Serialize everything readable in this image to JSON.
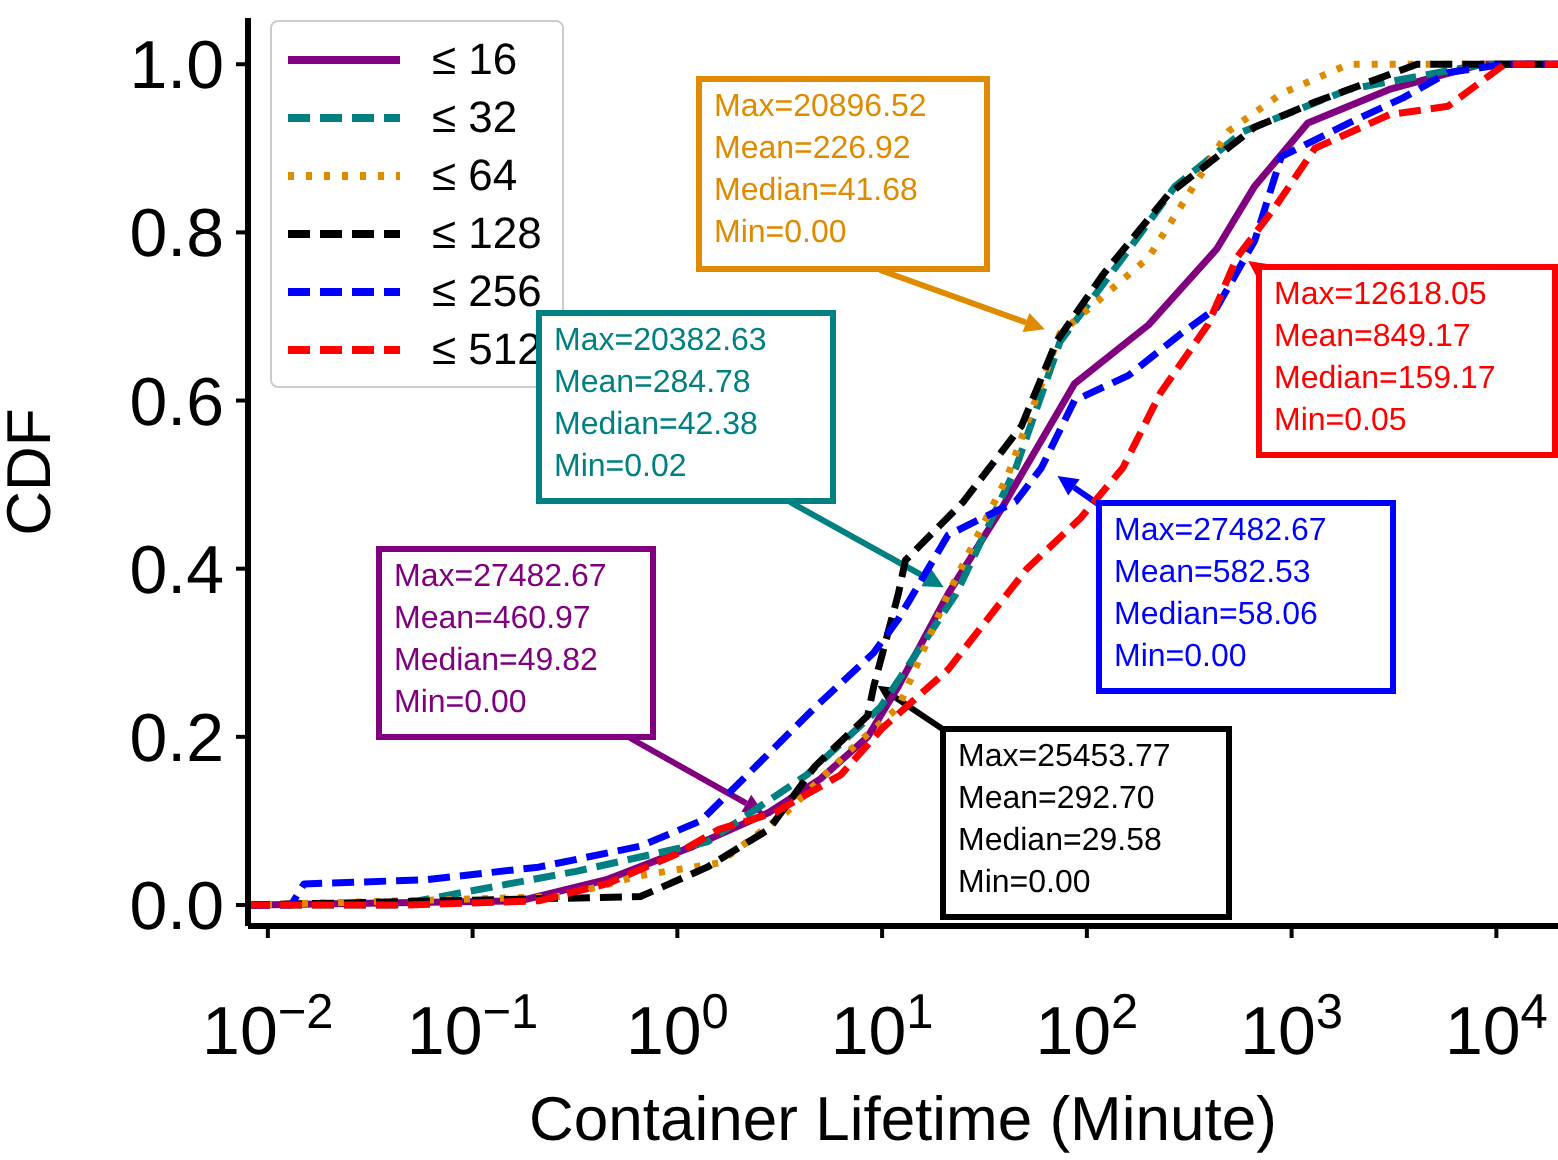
{
  "chart_data": {
    "type": "line",
    "xlabel": "Container Lifetime (Minute)",
    "ylabel": "CDF",
    "log": "x",
    "grid": false,
    "legend": "top left",
    "marker": "none",
    "xlim": [
      0.008,
      20000
    ],
    "xticks": [
      {
        "value": 0.01,
        "label": "10$^{−2}$"
      },
      {
        "value": 0.1,
        "label": "10$^{−1}$"
      },
      {
        "value": 1,
        "label": "10$^{0}$"
      },
      {
        "value": 10,
        "label": "10$^{1}$"
      },
      {
        "value": 100,
        "label": "10$^{2}$"
      },
      {
        "value": 1000,
        "label": "10$^{3}$"
      },
      {
        "value": 10000,
        "label": "10$^{4}$"
      }
    ],
    "ylim": [
      -0.025,
      1.055
    ],
    "yticks": [
      {
        "value": 0,
        "label": "0.0"
      },
      {
        "value": 0.2,
        "label": "0.2"
      },
      {
        "value": 0.4,
        "label": "0.4"
      },
      {
        "value": 0.6,
        "label": "0.6"
      },
      {
        "value": 0.8,
        "label": "0.8"
      },
      {
        "value": 1,
        "label": "1.0"
      }
    ],
    "series": [
      {
        "name": "≤ 16",
        "color": "#800080",
        "line_style": "solid",
        "x": [
          0.008,
          0.17,
          0.45,
          1.2,
          2.8,
          5,
          8.5,
          12,
          21,
          38,
          87,
          200,
          430,
          660,
          1200,
          3000,
          8500,
          20000
        ],
        "values": [
          0,
          0.005,
          0.03,
          0.07,
          0.11,
          0.15,
          0.2,
          0.26,
          0.37,
          0.47,
          0.62,
          0.69,
          0.78,
          0.855,
          0.93,
          0.97,
          1,
          1
        ]
      },
      {
        "name": "≤ 32",
        "color": "#008080",
        "line_style": "dashed",
        "x": [
          0.008,
          0.042,
          0.32,
          1.4,
          4.3,
          9.8,
          23,
          45,
          74,
          150,
          270,
          580,
          1900,
          8500,
          20000
        ],
        "values": [
          0,
          0,
          0.04,
          0.075,
          0.155,
          0.235,
          0.37,
          0.52,
          0.67,
          0.77,
          0.855,
          0.92,
          0.97,
          1,
          1
        ]
      },
      {
        "name": "≤ 64",
        "color": "#e08a00",
        "line_style": "dotted",
        "x": [
          0.008,
          0.27,
          0.66,
          1.6,
          3.4,
          7.4,
          12,
          21,
          41,
          74,
          200,
          490,
          890,
          1900,
          20000
        ],
        "values": [
          0,
          0.01,
          0.035,
          0.05,
          0.11,
          0.19,
          0.235,
          0.37,
          0.51,
          0.68,
          0.77,
          0.92,
          0.965,
          1,
          1
        ]
      },
      {
        "name": "≤ 128",
        "color": "#000000",
        "line_style": "dashed",
        "x": [
          0.008,
          0.66,
          1.4,
          2.8,
          4.7,
          8.5,
          9.1,
          12,
          13,
          25,
          48,
          71,
          120,
          250,
          660,
          1300,
          4100,
          20000
        ],
        "values": [
          0,
          0.01,
          0.045,
          0.09,
          0.165,
          0.225,
          0.26,
          0.37,
          0.41,
          0.48,
          0.57,
          0.67,
          0.75,
          0.845,
          0.925,
          0.955,
          1,
          1
        ]
      },
      {
        "name": "≤ 256",
        "color": "#0000ff",
        "line_style": "dashed",
        "x": [
          0.008,
          0.013,
          0.015,
          0.059,
          0.21,
          0.66,
          1.3,
          2.2,
          4.7,
          9.1,
          12,
          21,
          45,
          60,
          87,
          160,
          290,
          430,
          660,
          890,
          1900,
          3500,
          5800,
          11000,
          20000
        ],
        "values": [
          0,
          0,
          0.025,
          0.03,
          0.045,
          0.07,
          0.1,
          0.155,
          0.235,
          0.3,
          0.34,
          0.44,
          0.48,
          0.52,
          0.6,
          0.63,
          0.68,
          0.71,
          0.79,
          0.89,
          0.93,
          0.96,
          0.99,
          1,
          1
        ]
      },
      {
        "name": "≤ 512",
        "color": "#ff0000",
        "line_style": "dashed",
        "x": [
          0.008,
          0.048,
          0.21,
          0.45,
          0.98,
          1.6,
          3,
          6.3,
          10,
          21,
          51,
          93,
          150,
          230,
          390,
          540,
          830,
          1300,
          3000,
          5800,
          8500,
          11000,
          20000
        ],
        "values": [
          0,
          0,
          0.005,
          0.025,
          0.06,
          0.09,
          0.11,
          0.155,
          0.21,
          0.28,
          0.4,
          0.46,
          0.52,
          0.61,
          0.69,
          0.77,
          0.83,
          0.9,
          0.94,
          0.95,
          0.98,
          1,
          1
        ]
      }
    ],
    "annotations": [
      "Max=27482.67\nMean=460.97\nMedian=49.82\nMin=0.00",
      "Max=20382.63\nMean=284.78\nMedian=42.38\nMin=0.02",
      "Max=20896.52\nMean=226.92\nMedian=41.68\nMin=0.00",
      "Max=25453.77\nMean=292.70\nMedian=29.58\nMin=0.00",
      "Max=27482.67\nMean=582.53\nMedian=58.06\nMin=0.00",
      "Max=12618.05\nMean=849.17\nMedian=159.17\nMin=0.05"
    ]
  }
}
